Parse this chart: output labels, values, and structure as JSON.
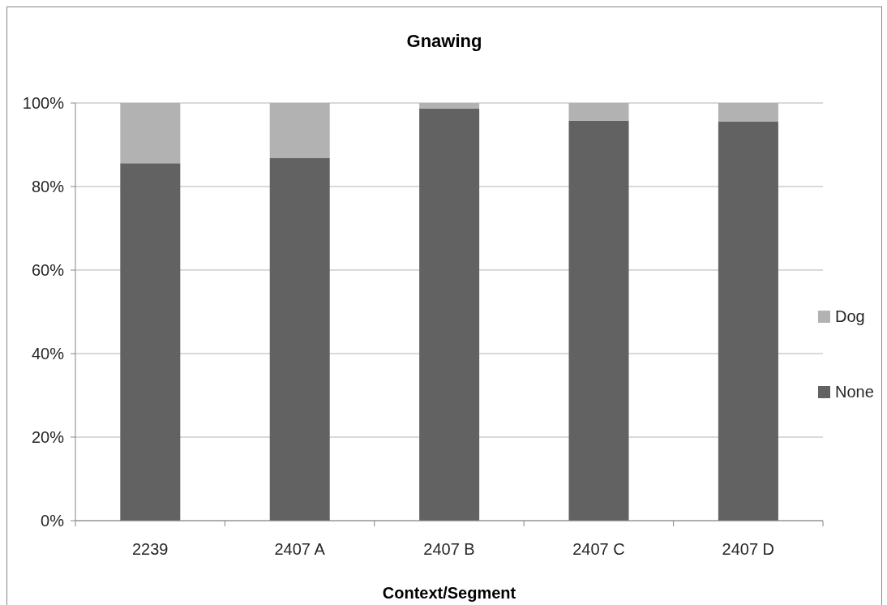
{
  "chart_data": {
    "type": "bar",
    "title": "Gnawing",
    "xlabel": "Context/Segment",
    "categories": [
      "2239",
      "2407 A",
      "2407 B",
      "2407 C",
      "2407 D"
    ],
    "stacked": true,
    "series": [
      {
        "name": "None",
        "color": "#626262",
        "values": [
          85.6,
          86.8,
          98.7,
          95.8,
          95.6
        ]
      },
      {
        "name": "Dog",
        "color": "#b2b2b2",
        "values": [
          14.4,
          13.2,
          1.3,
          4.2,
          4.4
        ]
      }
    ],
    "ylim": [
      0,
      100
    ],
    "yticks": [
      {
        "value": 0,
        "label": "0%"
      },
      {
        "value": 20,
        "label": "20%"
      },
      {
        "value": 40,
        "label": "40%"
      },
      {
        "value": 60,
        "label": "60%"
      },
      {
        "value": 80,
        "label": "80%"
      },
      {
        "value": 100,
        "label": "100%"
      }
    ],
    "grid": "y",
    "legend": "right"
  }
}
